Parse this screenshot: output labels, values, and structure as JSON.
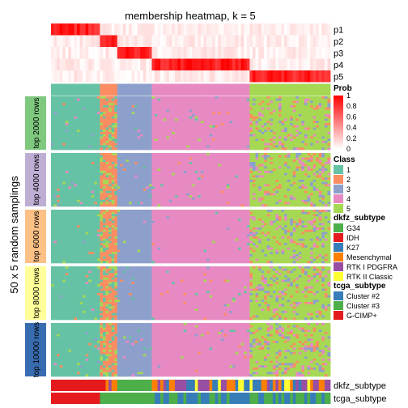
{
  "chart_data": {
    "type": "heatmap",
    "title": "membership heatmap, k = 5",
    "ylabel": "50 x 5 random samplings",
    "membership_rows": [
      "p1",
      "p2",
      "p3",
      "p4",
      "p5"
    ],
    "class_row_label": "Class",
    "row_groups": [
      "top 2000 rows",
      "top 4000 rows",
      "top 6000 rows",
      "top 8000 rows",
      "top 10000 rows"
    ],
    "row_group_colors": [
      "#7FC97F",
      "#BEAED4",
      "#FDC086",
      "#FFFF99",
      "#386CB0"
    ],
    "class_sizes": [
      17,
      6,
      12,
      34,
      28
    ],
    "bottom_tracks": [
      "dkfz_subtype",
      "tcga_subtype"
    ],
    "legends": {
      "prob": {
        "title": "Prob",
        "ticks": [
          "1",
          "0.8",
          "0.6",
          "0.4",
          "0.2",
          "0"
        ],
        "color_high": "#FF0000",
        "color_low": "#FFFFFF"
      },
      "class": {
        "title": "Class",
        "items": [
          {
            "label": "1",
            "color": "#66C2A5"
          },
          {
            "label": "2",
            "color": "#FC8D62"
          },
          {
            "label": "3",
            "color": "#8DA0CB"
          },
          {
            "label": "4",
            "color": "#E78AC3"
          },
          {
            "label": "5",
            "color": "#A6D854"
          }
        ]
      },
      "dkfz_subtype": {
        "title": "dkfz_subtype",
        "items": [
          {
            "label": "G34",
            "color": "#4DAF4A"
          },
          {
            "label": "IDH",
            "color": "#E41A1C"
          },
          {
            "label": "K27",
            "color": "#377EB8"
          },
          {
            "label": "Mesenchymal",
            "color": "#FF7F00"
          },
          {
            "label": "RTK I PDGFRA",
            "color": "#984EA3"
          },
          {
            "label": "RTK II Classic",
            "color": "#FFFF33"
          }
        ]
      },
      "tcga_subtype": {
        "title": "tcga_subtype",
        "items": [
          {
            "label": "Cluster #2",
            "color": "#377EB8"
          },
          {
            "label": "Cluster #3",
            "color": "#4DAF4A"
          },
          {
            "label": "G-CIMP+",
            "color": "#E41A1C"
          }
        ]
      }
    }
  }
}
